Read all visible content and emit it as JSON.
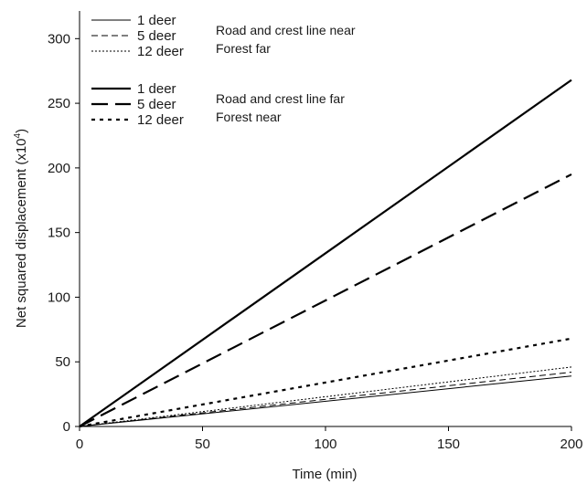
{
  "chart_data": {
    "type": "line",
    "xlabel": "Time (min)",
    "ylabel_main": "Net squared displacement (x10",
    "ylabel_sup": "4",
    "ylabel_close": ")",
    "xlim": [
      0,
      200
    ],
    "ylim": [
      0,
      320
    ],
    "x_ticks": [
      0,
      50,
      100,
      150,
      200
    ],
    "y_ticks": [
      0,
      50,
      100,
      150,
      200,
      250,
      300
    ],
    "grid": false,
    "legend_groups": [
      {
        "description_lines": [
          "Road and crest line near",
          "Forest far"
        ],
        "style": "thin"
      },
      {
        "description_lines": [
          "Road and crest line far",
          "Forest near"
        ],
        "style": "thick"
      }
    ],
    "series": [
      {
        "name": "1 deer",
        "group": 0,
        "dash": "solid",
        "x": [
          0,
          200
        ],
        "y": [
          0,
          39
        ]
      },
      {
        "name": "5 deer",
        "group": 0,
        "dash": "dashed",
        "x": [
          0,
          200
        ],
        "y": [
          0,
          42
        ]
      },
      {
        "name": "12 deer",
        "group": 0,
        "dash": "dotted",
        "x": [
          0,
          200
        ],
        "y": [
          0,
          46
        ]
      },
      {
        "name": "1 deer",
        "group": 1,
        "dash": "solid",
        "x": [
          0,
          200
        ],
        "y": [
          0,
          268
        ]
      },
      {
        "name": "5 deer",
        "group": 1,
        "dash": "dashed",
        "x": [
          0,
          200
        ],
        "y": [
          0,
          195
        ]
      },
      {
        "name": "12 deer",
        "group": 1,
        "dash": "dotted",
        "x": [
          0,
          200
        ],
        "y": [
          0,
          68
        ]
      }
    ],
    "colors": {
      "lines": "#000000",
      "text": "#1a1a1a"
    }
  }
}
